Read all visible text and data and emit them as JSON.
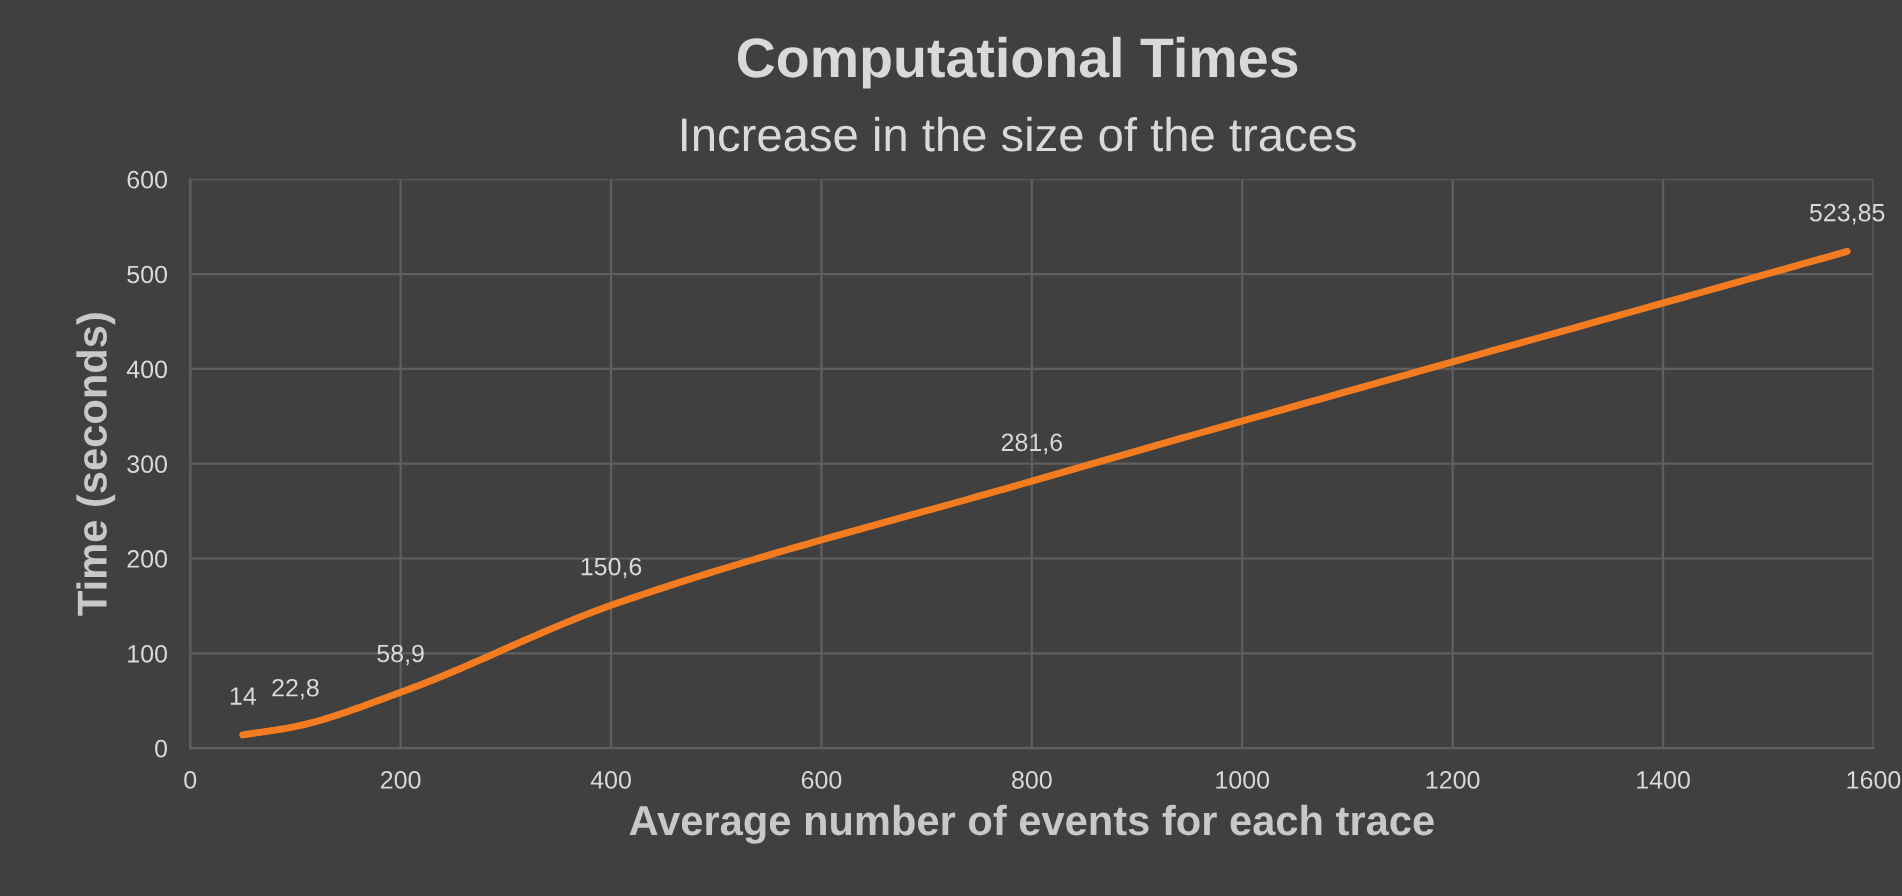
{
  "chart_data": {
    "type": "line",
    "title": "Computational Times",
    "subtitle": "Increase in the size of the traces",
    "xlabel": "Average number of events for each trace",
    "ylabel": "Time (seconds)",
    "series": [
      {
        "color": "#f47c20",
        "x": [
          50,
          100,
          200,
          400,
          800,
          1575
        ],
        "values": [
          14,
          22.8,
          58.9,
          150.6,
          281.6,
          523.85
        ],
        "value_labels": [
          "14",
          "22,8",
          "58,9",
          "150,6",
          "281,6",
          "523,85"
        ]
      }
    ],
    "xlim": [
      0,
      1600
    ],
    "xticks": [
      0,
      200,
      400,
      600,
      800,
      1000,
      1200,
      1400,
      1600
    ],
    "ylim": [
      0,
      600
    ],
    "yticks": [
      0,
      100,
      200,
      300,
      400,
      500,
      600
    ],
    "grid": true,
    "marker": "none",
    "line_style": "solid"
  }
}
